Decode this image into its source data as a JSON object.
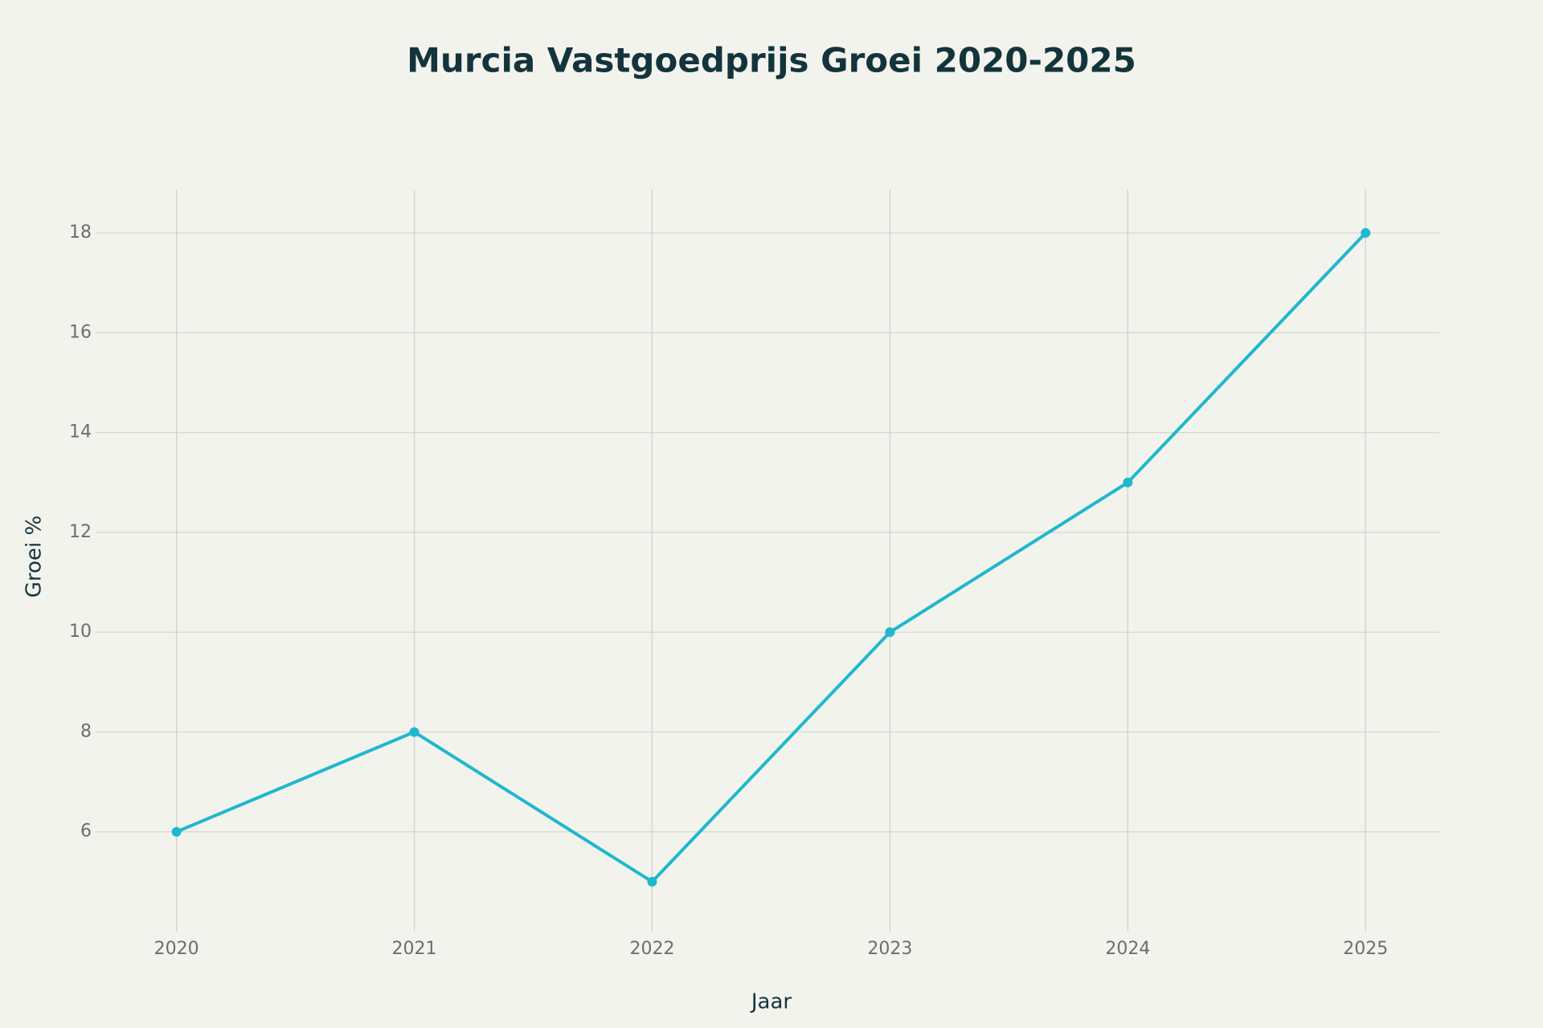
{
  "chart_data": {
    "type": "line",
    "title": "Murcia Vastgoedprijs Groei 2020-2025",
    "x_label": "Jaar",
    "y_label": "Groei %",
    "x": [
      2020,
      2021,
      2022,
      2023,
      2024,
      2025
    ],
    "series": [
      {
        "name": "Groei %",
        "color": "#1fb8cd",
        "values": [
          6,
          8,
          5,
          10,
          13,
          18
        ]
      }
    ],
    "xlim": [
      2019.66,
      2025.31
    ],
    "xticks": [
      2020,
      2021,
      2022,
      2023,
      2024,
      2025
    ],
    "ylim": [
      4,
      18.87
    ],
    "yticks": [
      6,
      8,
      10,
      12,
      14,
      16,
      18
    ],
    "grid": true,
    "markers": true
  }
}
